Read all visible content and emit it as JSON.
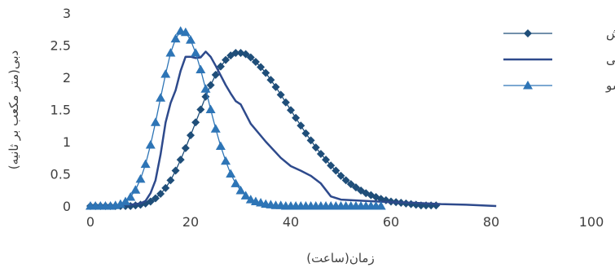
{
  "chart_data": {
    "type": "line",
    "xlabel": "زمان(ساعت)",
    "ylabel": "دبی(متر مکعب بر ثانیه)",
    "xlim": [
      0,
      100
    ],
    "ylim": [
      0,
      3
    ],
    "xticks": [
      "0",
      "20",
      "40",
      "60",
      "80",
      "100"
    ],
    "yticks": [
      "0",
      "0.5",
      "1",
      "1.5",
      "2",
      "2.5",
      "3"
    ],
    "grid": false,
    "legend_position": "top-right",
    "series": [
      {
        "name": "نش",
        "marker": "diamond",
        "color": "#1F4E79",
        "x": [
          0,
          1,
          2,
          3,
          4,
          5,
          6,
          7,
          8,
          9,
          10,
          11,
          12,
          13,
          14,
          15,
          16,
          17,
          18,
          19,
          20,
          21,
          22,
          23,
          24,
          25,
          26,
          27,
          28,
          29,
          30,
          31,
          32,
          33,
          34,
          35,
          36,
          37,
          38,
          39,
          40,
          41,
          42,
          43,
          44,
          45,
          46,
          47,
          48,
          49,
          50,
          51,
          52,
          53,
          54,
          55,
          56,
          57,
          58,
          59,
          60,
          61,
          62,
          63,
          64,
          65,
          66,
          67,
          68,
          69
        ],
        "y": [
          0,
          0,
          0,
          0,
          0,
          0,
          0,
          0,
          0,
          0.01,
          0.02,
          0.04,
          0.07,
          0.12,
          0.19,
          0.28,
          0.4,
          0.55,
          0.72,
          0.9,
          1.1,
          1.3,
          1.5,
          1.7,
          1.88,
          2.04,
          2.17,
          2.27,
          2.34,
          2.38,
          2.38,
          2.36,
          2.31,
          2.24,
          2.16,
          2.07,
          1.96,
          1.85,
          1.73,
          1.61,
          1.49,
          1.37,
          1.25,
          1.13,
          1.02,
          0.91,
          0.81,
          0.72,
          0.63,
          0.55,
          0.47,
          0.4,
          0.34,
          0.29,
          0.24,
          0.2,
          0.17,
          0.14,
          0.11,
          0.09,
          0.07,
          0.06,
          0.05,
          0.04,
          0.03,
          0.02,
          0.01,
          0.01,
          0.01,
          0.01
        ]
      },
      {
        "name": "مشاهداتی",
        "marker": "none",
        "color": "#2E4A8C",
        "x": [
          0,
          5,
          8,
          10,
          11,
          12,
          13,
          14,
          15,
          16,
          17,
          18,
          19,
          20,
          21,
          22,
          23,
          24,
          25,
          26,
          27,
          28,
          29,
          30,
          32,
          35,
          38,
          40,
          42,
          44,
          46,
          48,
          50,
          55,
          60,
          65,
          70,
          75,
          81
        ],
        "y": [
          0,
          0.01,
          0.02,
          0.04,
          0.08,
          0.2,
          0.4,
          0.8,
          1.3,
          1.6,
          1.8,
          2.1,
          2.32,
          2.32,
          2.3,
          2.31,
          2.4,
          2.32,
          2.18,
          2.03,
          1.88,
          1.75,
          1.63,
          1.58,
          1.28,
          1.0,
          0.75,
          0.62,
          0.55,
          0.47,
          0.35,
          0.15,
          0.1,
          0.08,
          0.06,
          0.05,
          0.03,
          0.02,
          0.0
        ]
      },
      {
        "name": "روسو",
        "marker": "triangle",
        "color": "#2E75B6",
        "x": [
          0,
          1,
          2,
          3,
          4,
          5,
          6,
          7,
          8,
          9,
          10,
          11,
          12,
          13,
          14,
          15,
          16,
          17,
          18,
          19,
          20,
          21,
          22,
          23,
          24,
          25,
          26,
          27,
          28,
          29,
          30,
          31,
          32,
          33,
          34,
          35,
          36,
          37,
          38,
          39,
          40,
          41,
          42,
          43,
          44,
          45,
          46,
          47,
          48,
          49,
          50,
          51,
          52,
          53,
          54,
          55,
          56,
          57,
          58
        ],
        "y": [
          0,
          0,
          0,
          0,
          0,
          0.01,
          0.03,
          0.07,
          0.14,
          0.25,
          0.42,
          0.65,
          0.95,
          1.3,
          1.68,
          2.05,
          2.38,
          2.6,
          2.72,
          2.7,
          2.58,
          2.38,
          2.12,
          1.82,
          1.5,
          1.2,
          0.93,
          0.7,
          0.5,
          0.35,
          0.24,
          0.16,
          0.1,
          0.07,
          0.05,
          0.03,
          0.02,
          0.01,
          0.01,
          0,
          0,
          0,
          0,
          0,
          0,
          0,
          0,
          0,
          0,
          0,
          0,
          0,
          0,
          0,
          0,
          0,
          0,
          0,
          0
        ]
      }
    ]
  }
}
